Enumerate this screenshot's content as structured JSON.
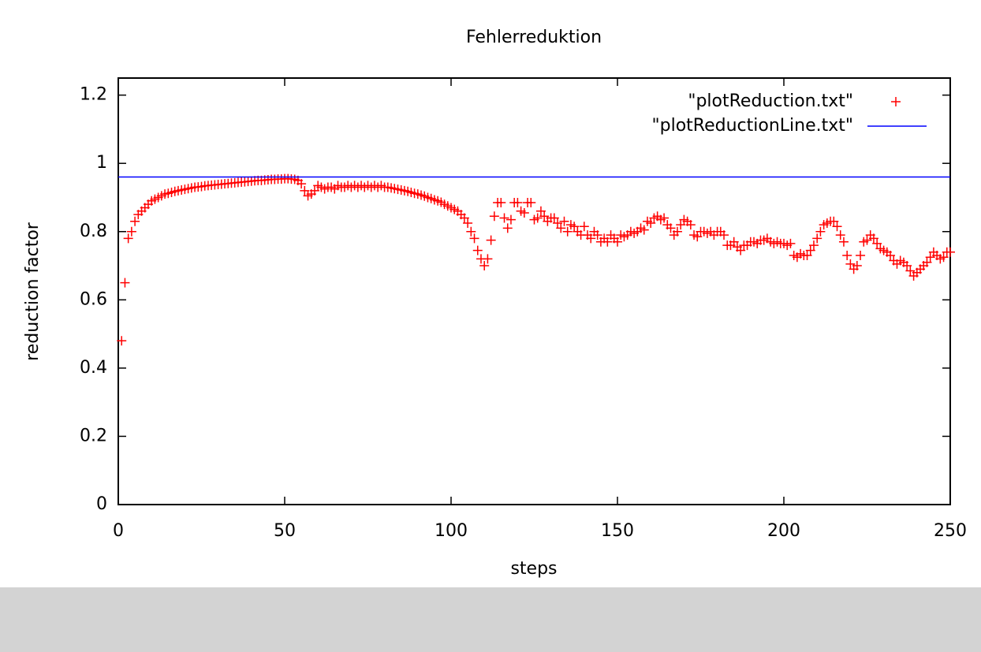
{
  "chart_data": {
    "type": "scatter",
    "title": "Fehlerreduktion",
    "x_label": "steps",
    "y_label": "reduction factor",
    "xlim": [
      0,
      250
    ],
    "xticks": [
      0,
      50,
      100,
      150,
      200,
      250
    ],
    "ylim": [
      0,
      1.25
    ],
    "yticks": [
      0,
      0.2,
      0.4,
      0.6,
      0.8,
      1,
      1.2
    ],
    "legend": "top-right",
    "series": [
      {
        "name": "\"plotReduction.txt\"",
        "color": "#ff0000",
        "mode": "points",
        "x": [
          1,
          2,
          3,
          4,
          5,
          6,
          7,
          8,
          9,
          10,
          11,
          12,
          13,
          14,
          15,
          16,
          17,
          18,
          19,
          20,
          21,
          22,
          23,
          24,
          25,
          26,
          27,
          28,
          29,
          30,
          31,
          32,
          33,
          34,
          35,
          36,
          37,
          38,
          39,
          40,
          41,
          42,
          43,
          44,
          45,
          46,
          47,
          48,
          49,
          50,
          51,
          52,
          53,
          54,
          55,
          56,
          57,
          58,
          59,
          60,
          61,
          62,
          63,
          64,
          65,
          66,
          67,
          68,
          69,
          70,
          71,
          72,
          73,
          74,
          75,
          76,
          77,
          78,
          79,
          80,
          81,
          82,
          83,
          84,
          85,
          86,
          87,
          88,
          89,
          90,
          91,
          92,
          93,
          94,
          95,
          96,
          97,
          98,
          99,
          100,
          101,
          102,
          103,
          104,
          105,
          106,
          107,
          108,
          109,
          110,
          111,
          112,
          113,
          114,
          115,
          116,
          117,
          118,
          119,
          120,
          121,
          122,
          123,
          124,
          125,
          126,
          127,
          128,
          129,
          130,
          131,
          132,
          133,
          134,
          135,
          136,
          137,
          138,
          139,
          140,
          141,
          142,
          143,
          144,
          145,
          146,
          147,
          148,
          149,
          150,
          151,
          152,
          153,
          154,
          155,
          156,
          157,
          158,
          159,
          160,
          161,
          162,
          163,
          164,
          165,
          166,
          167,
          168,
          169,
          170,
          171,
          172,
          173,
          174,
          175,
          176,
          177,
          178,
          179,
          180,
          181,
          182,
          183,
          184,
          185,
          186,
          187,
          188,
          189,
          190,
          191,
          192,
          193,
          194,
          195,
          196,
          197,
          198,
          199,
          200,
          201,
          202,
          203,
          204,
          205,
          206,
          207,
          208,
          209,
          210,
          211,
          212,
          213,
          214,
          215,
          216,
          217,
          218,
          219,
          220,
          221,
          222,
          223,
          224,
          225,
          226,
          227,
          228,
          229,
          230,
          231,
          232,
          233,
          234,
          235,
          236,
          237,
          238,
          239,
          240,
          241,
          242,
          243,
          244,
          245,
          246,
          247,
          248,
          249,
          250
        ],
        "values": [
          0.48,
          0.65,
          0.78,
          0.8,
          0.83,
          0.85,
          0.86,
          0.87,
          0.88,
          0.89,
          0.895,
          0.9,
          0.905,
          0.91,
          0.912,
          0.915,
          0.918,
          0.92,
          0.922,
          0.924,
          0.926,
          0.928,
          0.93,
          0.931,
          0.932,
          0.934,
          0.935,
          0.936,
          0.937,
          0.938,
          0.939,
          0.94,
          0.941,
          0.942,
          0.943,
          0.944,
          0.945,
          0.946,
          0.947,
          0.948,
          0.949,
          0.95,
          0.95,
          0.951,
          0.952,
          0.953,
          0.953,
          0.954,
          0.954,
          0.955,
          0.955,
          0.954,
          0.953,
          0.95,
          0.94,
          0.92,
          0.905,
          0.91,
          0.92,
          0.935,
          0.93,
          0.925,
          0.93,
          0.93,
          0.925,
          0.935,
          0.93,
          0.93,
          0.935,
          0.93,
          0.935,
          0.93,
          0.935,
          0.93,
          0.935,
          0.93,
          0.935,
          0.93,
          0.935,
          0.93,
          0.93,
          0.928,
          0.926,
          0.924,
          0.922,
          0.92,
          0.918,
          0.915,
          0.912,
          0.91,
          0.907,
          0.904,
          0.9,
          0.897,
          0.893,
          0.89,
          0.886,
          0.88,
          0.875,
          0.87,
          0.865,
          0.86,
          0.85,
          0.84,
          0.825,
          0.8,
          0.78,
          0.745,
          0.72,
          0.7,
          0.72,
          0.775,
          0.845,
          0.885,
          0.885,
          0.84,
          0.81,
          0.835,
          0.885,
          0.885,
          0.86,
          0.855,
          0.885,
          0.885,
          0.835,
          0.84,
          0.86,
          0.845,
          0.83,
          0.84,
          0.84,
          0.825,
          0.81,
          0.83,
          0.8,
          0.82,
          0.815,
          0.8,
          0.79,
          0.815,
          0.79,
          0.78,
          0.8,
          0.79,
          0.77,
          0.78,
          0.77,
          0.79,
          0.78,
          0.77,
          0.79,
          0.785,
          0.79,
          0.8,
          0.795,
          0.8,
          0.81,
          0.805,
          0.83,
          0.825,
          0.84,
          0.845,
          0.835,
          0.84,
          0.82,
          0.81,
          0.79,
          0.8,
          0.82,
          0.835,
          0.83,
          0.82,
          0.79,
          0.785,
          0.8,
          0.8,
          0.795,
          0.8,
          0.79,
          0.8,
          0.8,
          0.79,
          0.76,
          0.76,
          0.77,
          0.755,
          0.745,
          0.76,
          0.76,
          0.77,
          0.77,
          0.765,
          0.775,
          0.775,
          0.78,
          0.77,
          0.765,
          0.77,
          0.765,
          0.765,
          0.76,
          0.765,
          0.73,
          0.725,
          0.735,
          0.73,
          0.73,
          0.745,
          0.76,
          0.78,
          0.8,
          0.82,
          0.825,
          0.83,
          0.83,
          0.815,
          0.79,
          0.77,
          0.73,
          0.705,
          0.69,
          0.7,
          0.73,
          0.77,
          0.775,
          0.79,
          0.78,
          0.765,
          0.75,
          0.745,
          0.74,
          0.73,
          0.715,
          0.705,
          0.715,
          0.71,
          0.7,
          0.685,
          0.67,
          0.68,
          0.69,
          0.7,
          0.71,
          0.725,
          0.74,
          0.73,
          0.72,
          0.725,
          0.74,
          0.74
        ]
      },
      {
        "name": "\"plotReductionLine.txt\"",
        "color": "#0000ff",
        "mode": "lines",
        "x": [
          0,
          250
        ],
        "values": [
          0.96,
          0.96
        ]
      }
    ]
  }
}
